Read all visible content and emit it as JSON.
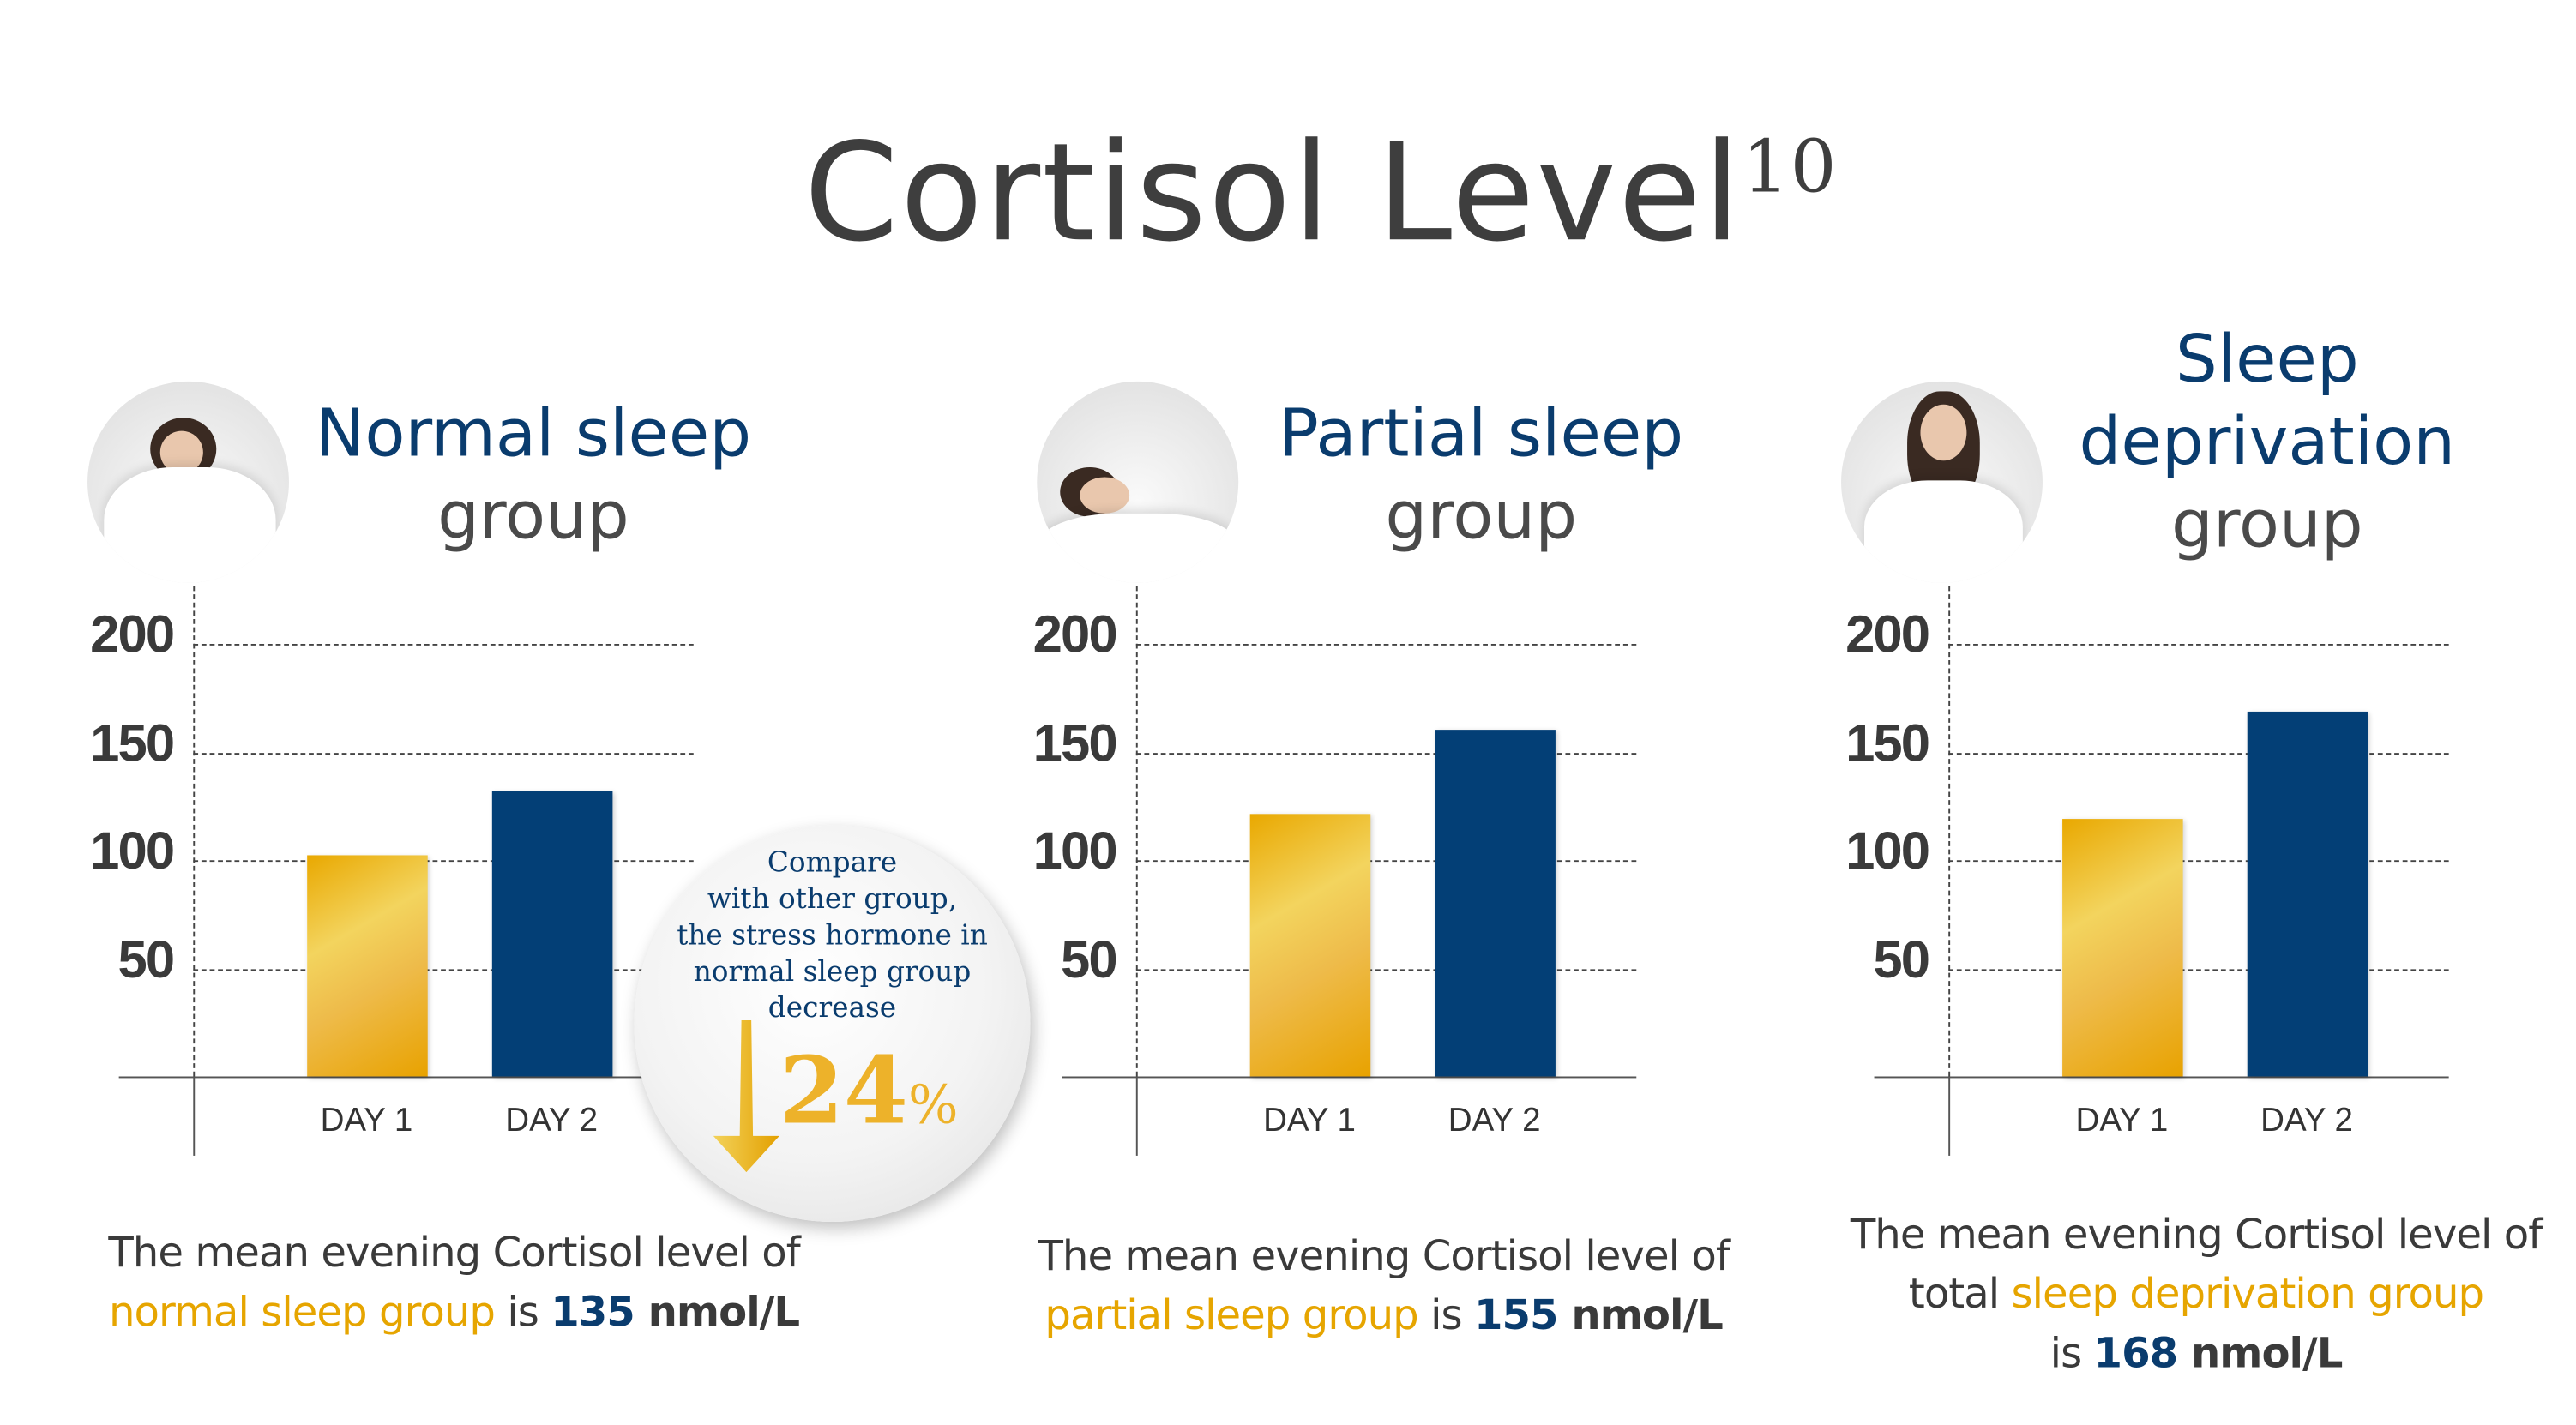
{
  "title": {
    "text": "Cortisol Level",
    "superscript": "10"
  },
  "colors": {
    "day1": "#f0c040",
    "day2": "#033f76",
    "accent_text": "#e6a500",
    "blue_text": "#0a3c6e"
  },
  "chart_data": [
    {
      "type": "bar",
      "title": "Normal sleep group",
      "categories": [
        "DAY 1",
        "DAY 2"
      ],
      "values": [
        102,
        132
      ],
      "yticks": [
        "50",
        "100",
        "150",
        "200"
      ],
      "ylim": [
        0,
        200
      ],
      "grid": true
    },
    {
      "type": "bar",
      "title": "Partial sleep group",
      "categories": [
        "DAY 1",
        "DAY 2"
      ],
      "values": [
        121,
        160
      ],
      "yticks": [
        "50",
        "100",
        "150",
        "200"
      ],
      "ylim": [
        0,
        200
      ],
      "grid": true
    },
    {
      "type": "bar",
      "title": "Sleep deprivation group",
      "categories": [
        "DAY 1",
        "DAY 2"
      ],
      "values": [
        119,
        169
      ],
      "yticks": [
        "50",
        "100",
        "150",
        "200"
      ],
      "ylim": [
        0,
        200
      ],
      "grid": true
    }
  ],
  "panels": [
    {
      "head_blue": [
        "Normal sleep"
      ],
      "head_gray": "group",
      "caption": {
        "line1": "The mean evening Cortisol level of",
        "pre": "",
        "group": "normal sleep group",
        "is": " is ",
        "value": "135",
        "unit": " nmol/L"
      }
    },
    {
      "head_blue": [
        "Partial sleep"
      ],
      "head_gray": "group",
      "caption": {
        "line1": "The mean evening Cortisol level of",
        "pre": "",
        "group": "partial sleep group",
        "is": " is ",
        "value": "155",
        "unit": " nmol/L"
      }
    },
    {
      "head_blue": [
        "Sleep",
        "deprivation"
      ],
      "head_gray": "group",
      "caption": {
        "line1": "The mean evening Cortisol level of",
        "pre": "total ",
        "group": "sleep deprivation group",
        "is": "is ",
        "value": "168",
        "unit": " nmol/L"
      }
    }
  ],
  "bubble": {
    "lines": [
      "Compare",
      "with other group,",
      "the stress hormone in",
      "normal sleep group",
      "decrease"
    ],
    "value": "24",
    "unit": "%"
  }
}
